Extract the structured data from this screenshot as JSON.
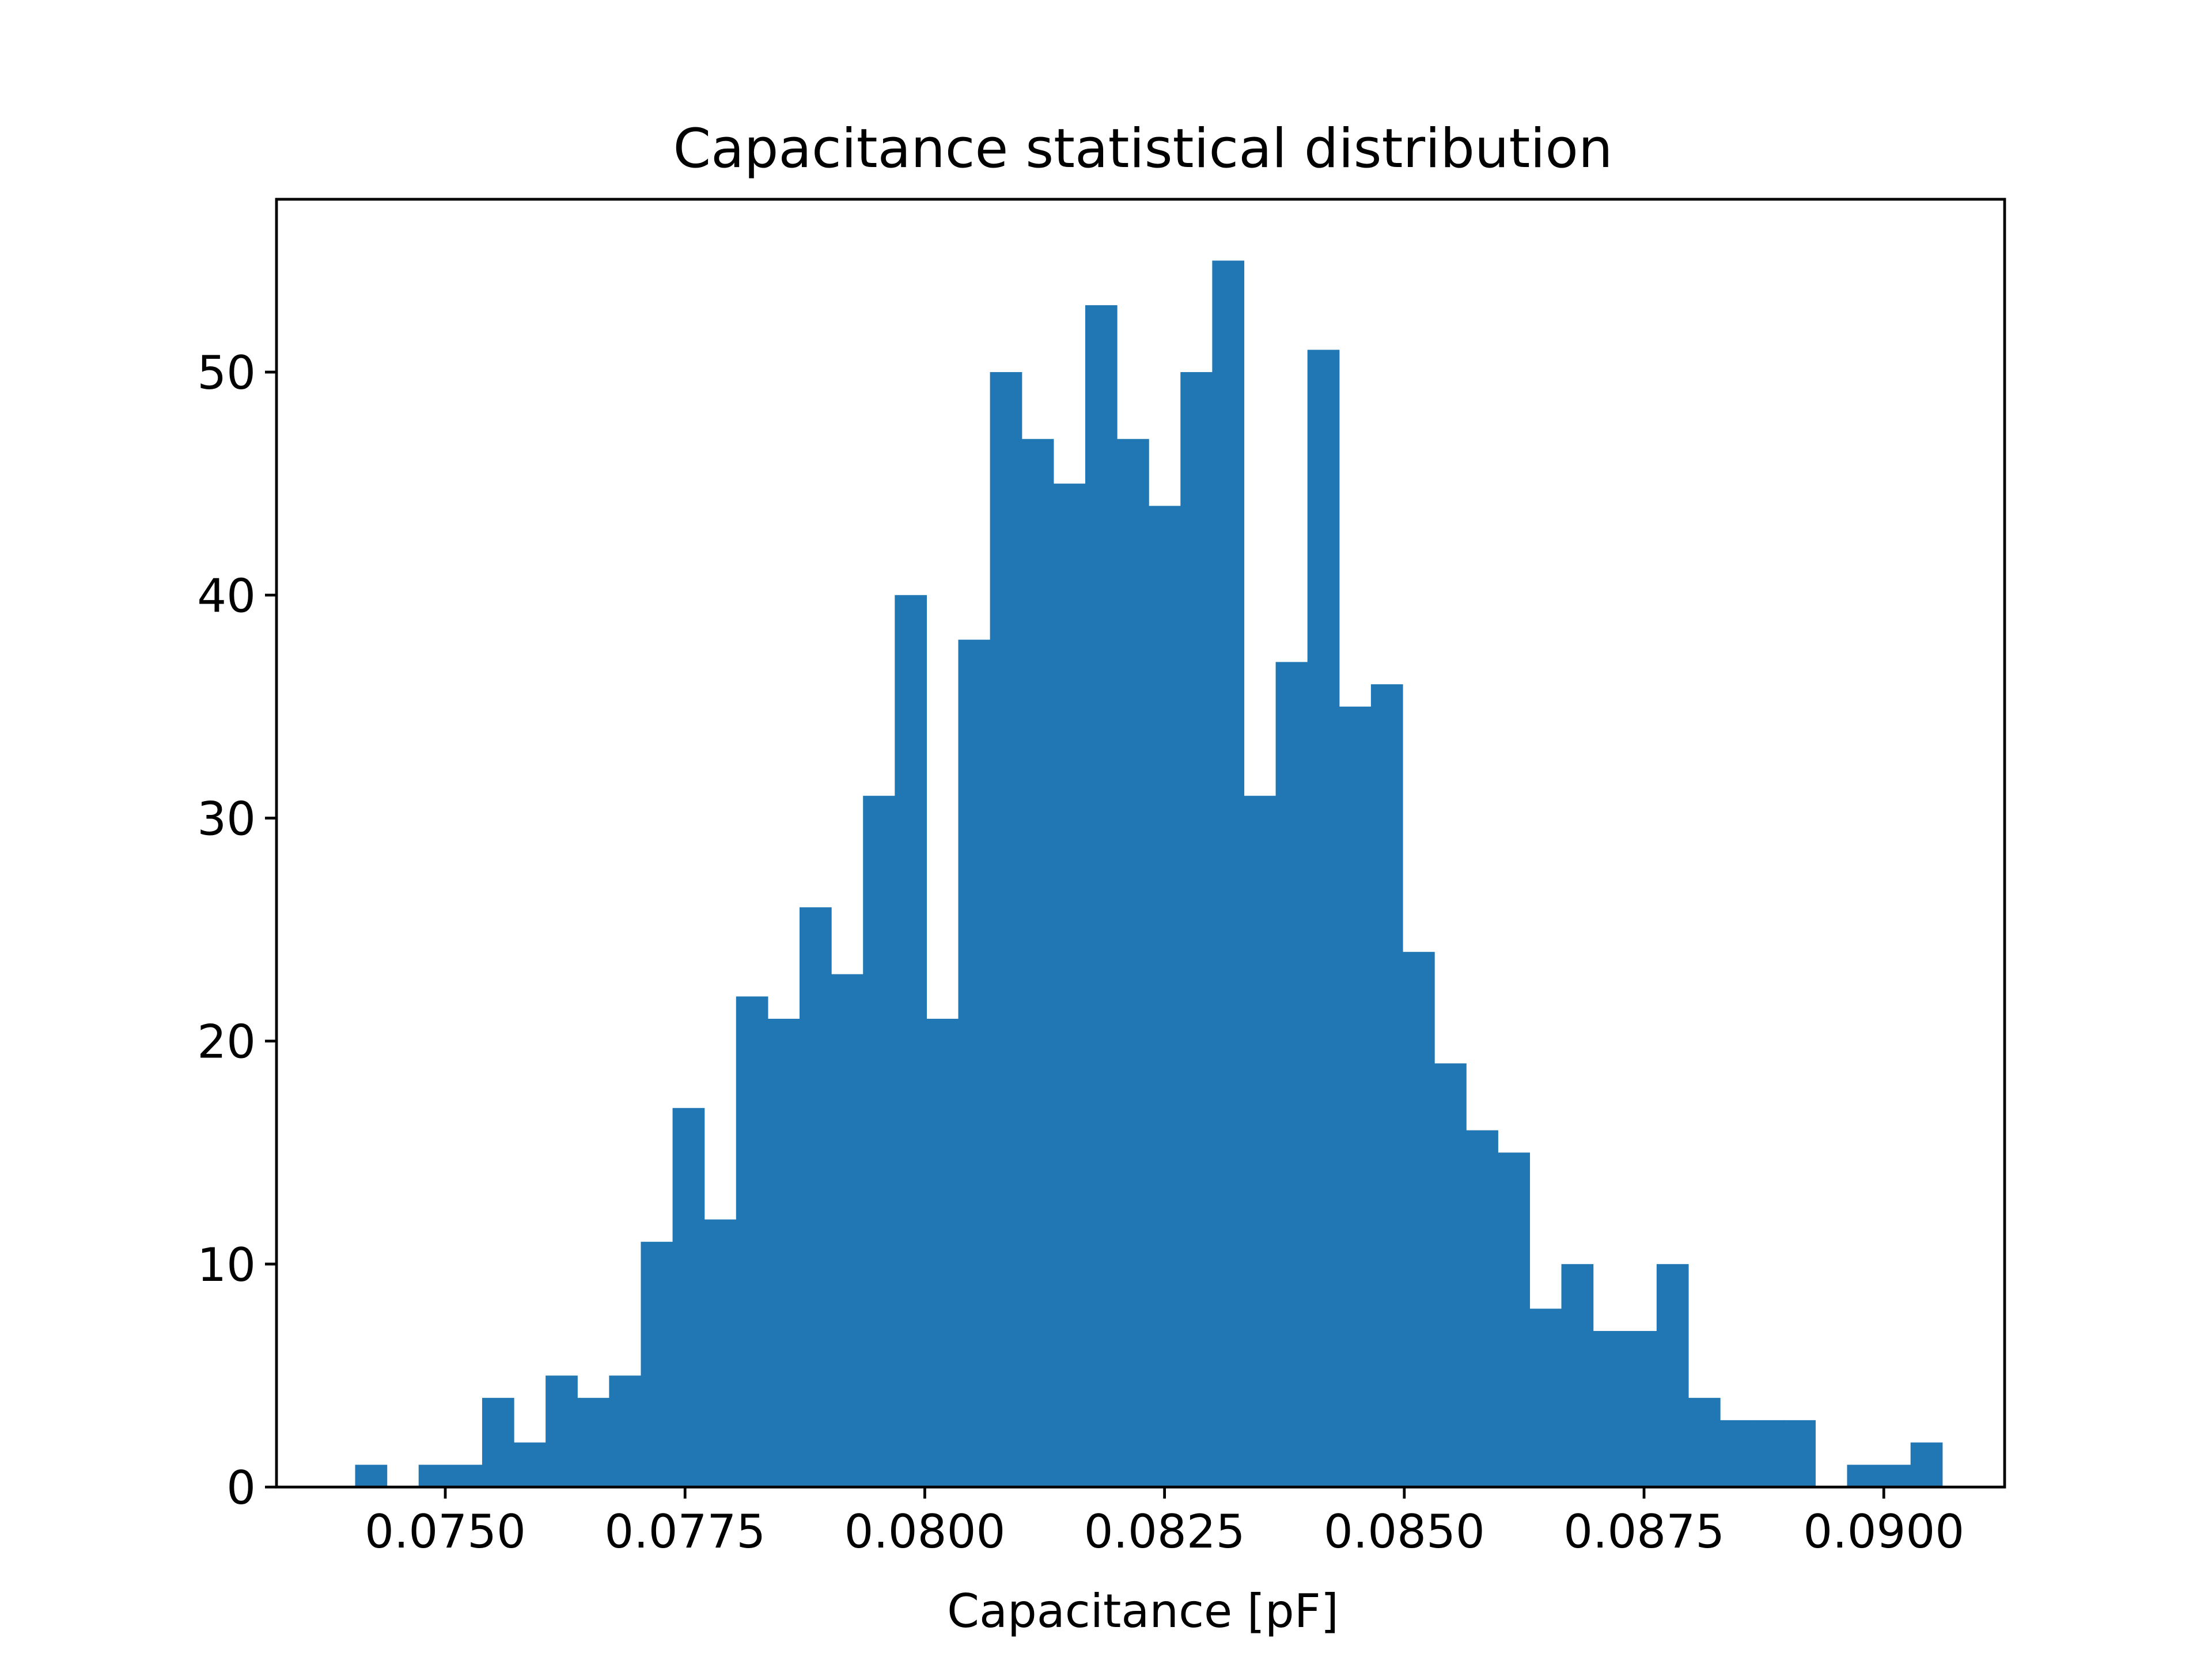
{
  "chart_data": {
    "type": "bar",
    "title": "Capacitance statistical distribution",
    "xlabel": "Capacitance [pF]",
    "ylabel": "",
    "xlim": [
      0.07324,
      0.09126
    ],
    "ylim": [
      0,
      57.75
    ],
    "x_ticks": [
      0.075,
      0.0775,
      0.08,
      0.0825,
      0.085,
      0.0875,
      0.09
    ],
    "x_tick_labels": [
      "0.0750",
      "0.0775",
      "0.0800",
      "0.0825",
      "0.0850",
      "0.0875",
      "0.0900"
    ],
    "y_ticks": [
      0,
      10,
      20,
      30,
      40,
      50
    ],
    "y_tick_labels": [
      "0",
      "10",
      "20",
      "30",
      "40",
      "50"
    ],
    "bin_start": 0.07406,
    "bin_width": 0.000331,
    "values": [
      1,
      0,
      1,
      1,
      4,
      2,
      5,
      4,
      5,
      11,
      17,
      12,
      22,
      21,
      26,
      23,
      31,
      40,
      21,
      38,
      50,
      47,
      45,
      53,
      47,
      44,
      50,
      55,
      31,
      37,
      51,
      35,
      36,
      24,
      19,
      16,
      15,
      8,
      10,
      7,
      7,
      10,
      4,
      3,
      3,
      3,
      0,
      1,
      1,
      2
    ],
    "bar_color": "#2077b4",
    "grid": false,
    "legend": false
  }
}
